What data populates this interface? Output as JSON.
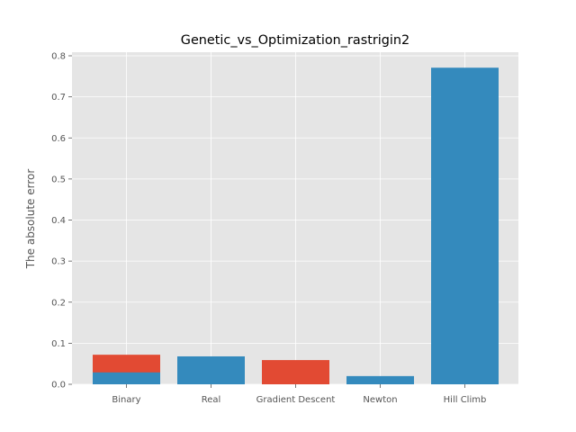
{
  "chart_data": {
    "type": "bar",
    "title": "Genetic_vs_Optimization_rastrigin2",
    "xlabel": "",
    "ylabel": "The absolute error",
    "categories": [
      "Binary",
      "Real",
      "Gradient Descent",
      "Newton",
      "Hill Climb"
    ],
    "series": [
      {
        "values": [
          0.072,
          null,
          0.059,
          null,
          null
        ],
        "color": "#E24A33"
      },
      {
        "values": [
          0.029,
          0.068,
          null,
          0.02,
          0.771
        ],
        "color": "#348ABD"
      }
    ],
    "ylim": [
      0,
      0.8
    ],
    "yticks": [
      "0.0",
      "0.1",
      "0.2",
      "0.3",
      "0.4",
      "0.5",
      "0.6",
      "0.7",
      "0.8"
    ],
    "ytick_values": [
      0,
      0.1,
      0.2,
      0.3,
      0.4,
      0.5,
      0.6,
      0.7,
      0.8
    ],
    "grid": true,
    "background": "#E5E5E5",
    "grid_color": "#FFFFFF"
  }
}
